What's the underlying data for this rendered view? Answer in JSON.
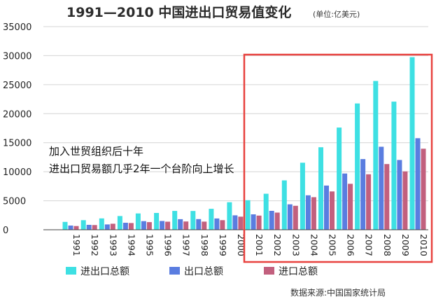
{
  "chart_data": {
    "type": "bar",
    "title": "1991—2010 中国进出口贸易值变化",
    "unit": "(单位:亿美元)",
    "categories": [
      "1991",
      "1992",
      "1993",
      "1994",
      "1995",
      "1996",
      "1997",
      "1998",
      "1999",
      "2000",
      "2001",
      "2002",
      "2003",
      "2004",
      "2005",
      "2006",
      "2007",
      "2008",
      "2009",
      "2010"
    ],
    "series": [
      {
        "name": "进出口总额",
        "color": "#3ee0e3",
        "values": [
          1357,
          1655,
          1957,
          2366,
          2809,
          2899,
          3252,
          3239,
          3606,
          4743,
          5097,
          6208,
          8510,
          11546,
          14219,
          17604,
          21765,
          25633,
          22075,
          29740
        ]
      },
      {
        "name": "出口总额",
        "color": "#5a7de0",
        "values": [
          719,
          849,
          917,
          1210,
          1488,
          1511,
          1828,
          1837,
          1949,
          2492,
          2661,
          3256,
          4382,
          5933,
          7620,
          9689,
          12178,
          14307,
          12017,
          15778
        ]
      },
      {
        "name": "进口总额",
        "color": "#c2607e",
        "values": [
          638,
          806,
          1040,
          1156,
          1321,
          1388,
          1424,
          1402,
          1657,
          2251,
          2436,
          2952,
          4128,
          5612,
          6600,
          7915,
          9558,
          11326,
          10059,
          13962
        ]
      }
    ],
    "ylim": [
      0,
      35000
    ],
    "yticks": [
      "0",
      "5000",
      "10000",
      "15000",
      "20000",
      "25000",
      "30000",
      "35000"
    ],
    "grid": true,
    "legend_position": "bottom",
    "annotation": [
      "加入世贸组织后十年",
      "进出口贸易额几乎2年一个台阶向上增长"
    ],
    "highlight_color": "#e8423f"
  },
  "source": "数据来源:中国国家统计局"
}
